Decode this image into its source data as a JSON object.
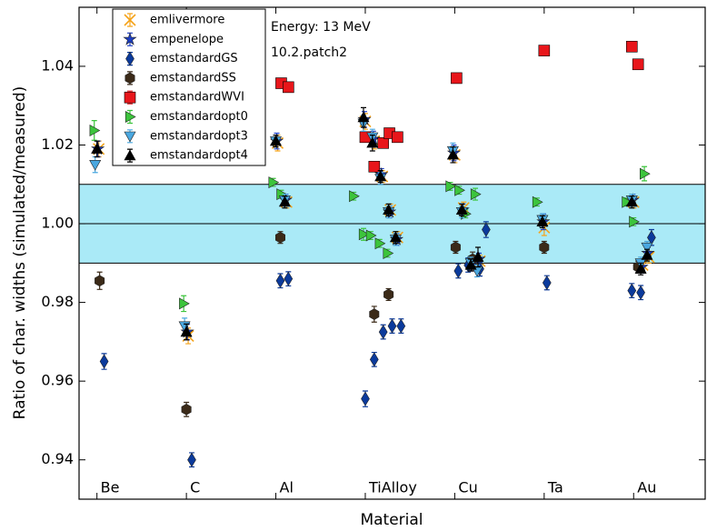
{
  "chart_data": {
    "type": "scatter",
    "xlabel": "Material",
    "ylabel": "Ratio of char. widths (simulated/measured)",
    "annotations": [
      "Energy: 13 MeV",
      "10.2.patch2"
    ],
    "xlim": [
      0.8,
      7.8
    ],
    "ylim": [
      0.93,
      1.055
    ],
    "xticks": [
      {
        "value": 1,
        "label": "Be"
      },
      {
        "value": 2,
        "label": "C"
      },
      {
        "value": 3,
        "label": "Al"
      },
      {
        "value": 4,
        "label": "TiAlloy"
      },
      {
        "value": 5,
        "label": "Cu"
      },
      {
        "value": 6,
        "label": "Ta"
      },
      {
        "value": 7,
        "label": "Au"
      }
    ],
    "yticks": [
      0.94,
      0.96,
      0.98,
      {
        "value": 1,
        "label": "1.00"
      },
      1.02,
      1.04
    ],
    "band": {
      "range": [
        0.99,
        1.01
      ],
      "color": "#aaeaf7"
    },
    "hline": 1,
    "legend": "upper left",
    "series": [
      {
        "name": "emlivermore",
        "color": "#f5a31a",
        "marker": "x",
        "x": [
          1.02,
          2.02,
          3.02,
          3.12,
          4.0,
          4.1,
          4.19,
          4.28,
          4.36,
          5.0,
          5.1,
          5.2,
          5.28,
          6.0,
          7.0,
          7.1,
          7.17
        ],
        "values": [
          1.019,
          0.9715,
          1.0205,
          1.0055,
          1.026,
          1.021,
          1.012,
          1.0035,
          0.9965,
          1.0175,
          1.004,
          0.9895,
          0.9905,
          0.999,
          1.0055,
          0.9895,
          0.9915
        ],
        "errors": [
          0.002,
          0.002,
          0.002,
          0.0015,
          0.002,
          0.002,
          0.0015,
          0.0015,
          0.0015,
          0.002,
          0.0015,
          0.0015,
          0.0015,
          0.002,
          0.0015,
          0.0015,
          0.0015
        ]
      },
      {
        "name": "empenelope",
        "color": "#1c3ec4",
        "marker": "star",
        "x": [
          1.01,
          2.01,
          3.01,
          3.11,
          3.99,
          4.09,
          4.18,
          4.27,
          4.35,
          4.99,
          5.09,
          5.19,
          5.27,
          5.99,
          6.99,
          7.09,
          7.16
        ],
        "values": [
          1.019,
          0.9725,
          1.021,
          1.006,
          1.0265,
          1.0215,
          1.0125,
          1.003,
          0.996,
          1.018,
          1.0035,
          0.9895,
          0.991,
          1.0005,
          1.006,
          0.989,
          0.9925
        ],
        "errors": [
          0.002,
          0.002,
          0.002,
          0.0015,
          0.002,
          0.002,
          0.0015,
          0.0015,
          0.0015,
          0.002,
          0.0015,
          0.0015,
          0.0015,
          0.002,
          0.0015,
          0.0015,
          0.0015
        ]
      },
      {
        "name": "emstandardGS",
        "color": "#0b3a9c",
        "marker": "diamond",
        "x": [
          1.08,
          2.06,
          3.05,
          3.14,
          4.0,
          4.1,
          4.2,
          4.3,
          4.4,
          5.04,
          5.15,
          5.28,
          5.35,
          6.03,
          6.98,
          7.08,
          7.2
        ],
        "values": [
          0.965,
          0.94,
          0.9855,
          0.986,
          0.9555,
          0.9655,
          0.9725,
          0.974,
          0.974,
          0.988,
          0.9895,
          0.9885,
          0.9985,
          0.985,
          0.983,
          0.9825,
          0.9965
        ],
        "errors": [
          0.002,
          0.0018,
          0.0018,
          0.0018,
          0.002,
          0.0018,
          0.0018,
          0.0018,
          0.0018,
          0.0018,
          0.0018,
          0.0018,
          0.002,
          0.0018,
          0.0018,
          0.0018,
          0.002
        ]
      },
      {
        "name": "emstandardSS",
        "color": "#3b2a18",
        "marker": "hexagon",
        "x": [
          1.03,
          2.0,
          3.05,
          4.1,
          4.26,
          5.01,
          5.2,
          6.0,
          7.05
        ],
        "values": [
          0.9855,
          0.9528,
          0.9965,
          0.977,
          0.982,
          0.994,
          0.991,
          0.994,
          0.989
        ],
        "errors": [
          0.0022,
          0.0018,
          0.0015,
          0.002,
          0.0015,
          0.0015,
          0.0018,
          0.0015,
          0.0015
        ]
      },
      {
        "name": "emstandardWVI",
        "color": "#e8161b",
        "marker": "square",
        "x": [
          3.06,
          3.14,
          4.0,
          4.1,
          4.2,
          4.27,
          4.36,
          5.02,
          6.0,
          6.98,
          7.05
        ],
        "values": [
          1.0357,
          1.0347,
          1.022,
          1.0145,
          1.0205,
          1.023,
          1.022,
          1.037,
          1.044,
          1.045,
          1.0405
        ],
        "errors": [
          0.0005,
          0.0005,
          0.0005,
          0.0005,
          0.0005,
          0.0005,
          0.0005,
          0.0005,
          0.0005,
          0.0005,
          0.0005
        ]
      },
      {
        "name": "emstandardopt0",
        "color": "#3cc43c",
        "marker": "triangle-right",
        "x": [
          0.97,
          1.97,
          2.97,
          3.06,
          3.87,
          3.98,
          4.06,
          4.16,
          4.25,
          4.95,
          5.05,
          5.12,
          5.23,
          5.92,
          6.92,
          7.0,
          7.12
        ],
        "values": [
          1.0237,
          0.9797,
          1.0105,
          1.0075,
          1.007,
          0.9973,
          0.997,
          0.995,
          0.9925,
          1.0095,
          1.0085,
          1.0025,
          1.0075,
          1.0055,
          1.0055,
          1.0005,
          1.0127
        ],
        "errors": [
          0.0025,
          0.002,
          0.001,
          0.001,
          0.001,
          0.0015,
          0.001,
          0.001,
          0.001,
          0.001,
          0.001,
          0.001,
          0.0015,
          0.001,
          0.001,
          0.001,
          0.0018
        ]
      },
      {
        "name": "emstandardopt3",
        "color": "#4aa8e0",
        "marker": "triangle-down",
        "x": [
          0.98,
          1.98,
          3.0,
          3.1,
          3.98,
          4.08,
          4.17,
          4.26,
          4.34,
          4.98,
          5.08,
          5.18,
          5.25,
          5.98,
          6.98,
          7.08,
          7.15
        ],
        "values": [
          1.015,
          0.974,
          1.021,
          1.006,
          1.0255,
          1.022,
          1.0115,
          1.003,
          0.996,
          1.0185,
          1.003,
          0.99,
          0.988,
          1.001,
          1.006,
          0.99,
          0.994
        ],
        "errors": [
          0.002,
          0.002,
          0.0015,
          0.0015,
          0.002,
          0.002,
          0.0015,
          0.0015,
          0.0015,
          0.002,
          0.0015,
          0.0015,
          0.0015,
          0.0015,
          0.0015,
          0.0015,
          0.0015
        ]
      },
      {
        "name": "emstandardopt4",
        "color": "#000000",
        "marker": "triangle-up",
        "x": [
          1.0,
          2.0,
          3.0,
          3.1,
          3.98,
          4.08,
          4.17,
          4.26,
          4.34,
          4.98,
          5.08,
          5.18,
          5.26,
          5.98,
          6.98,
          7.08,
          7.15
        ],
        "values": [
          1.019,
          0.9725,
          1.021,
          1.0055,
          1.027,
          1.0205,
          1.012,
          1.0035,
          0.9965,
          1.0175,
          1.0035,
          0.9895,
          0.9915,
          1.0005,
          1.0055,
          0.9885,
          0.992
        ],
        "errors": [
          0.002,
          0.002,
          0.0015,
          0.0015,
          0.0025,
          0.002,
          0.0015,
          0.0015,
          0.0015,
          0.002,
          0.0015,
          0.0015,
          0.0025,
          0.0015,
          0.0015,
          0.0015,
          0.0015
        ]
      }
    ]
  }
}
